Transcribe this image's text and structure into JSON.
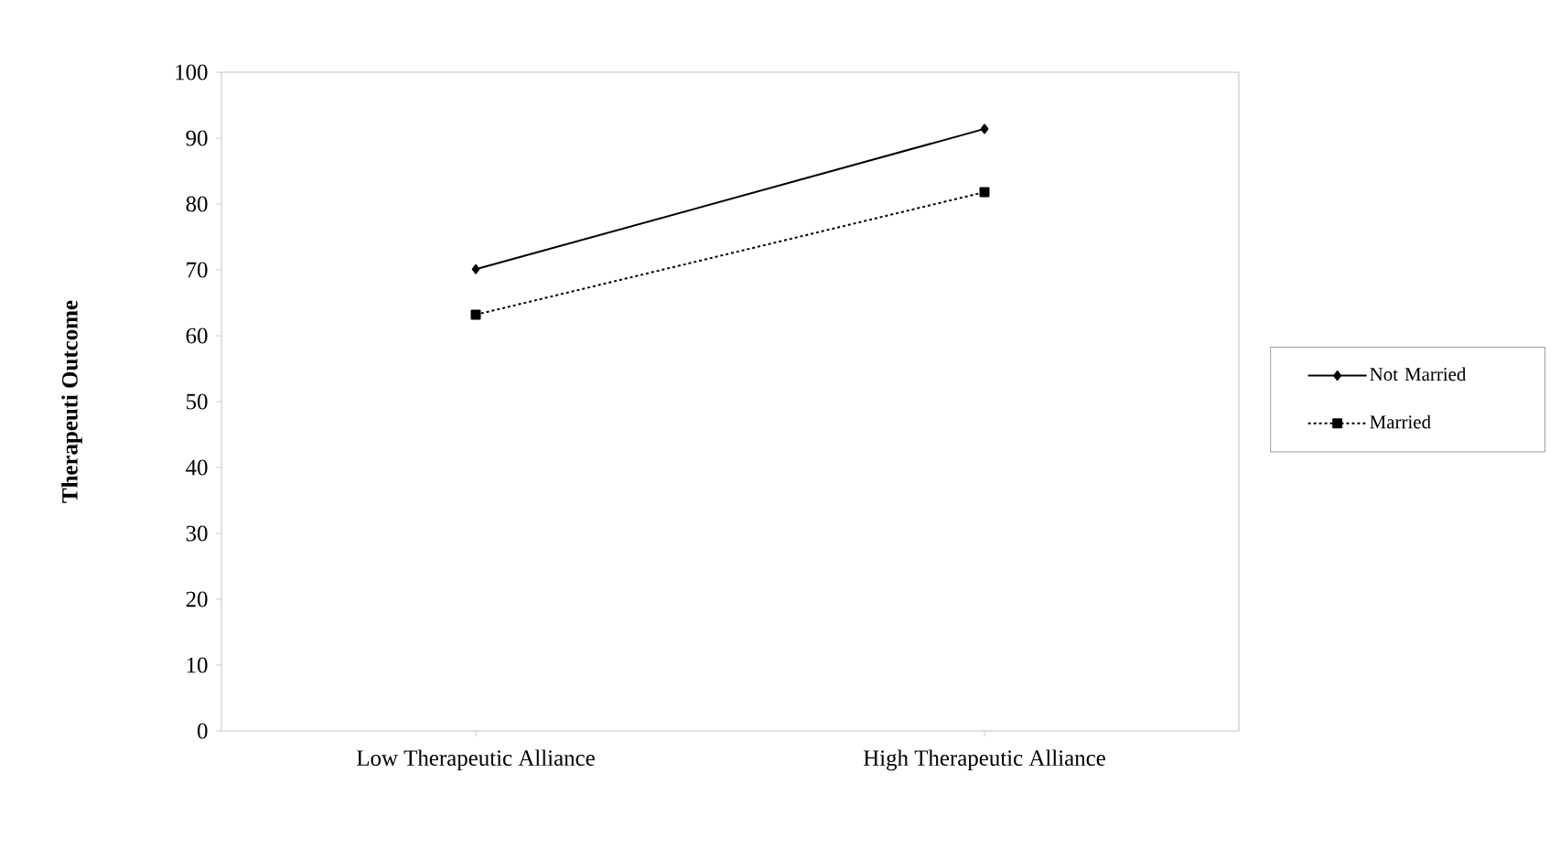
{
  "chart_data": {
    "type": "line",
    "ylabel": "Therapeuti Outcome",
    "categories": [
      "Low Therapeutic Alliance",
      "High Therapeutic Alliance"
    ],
    "series": [
      {
        "name": "Not Married",
        "color": "#000000",
        "values": [
          70.1,
          91.4
        ],
        "marker": "diamond",
        "line_style": "solid"
      },
      {
        "name": "Married",
        "color": "#000000",
        "values": [
          63.2,
          81.8
        ],
        "marker": "square",
        "line_style": "dashed"
      }
    ],
    "ylim": [
      0,
      100
    ],
    "yticks": [
      0,
      10,
      20,
      30,
      40,
      50,
      60,
      70,
      80,
      90,
      100
    ],
    "legend": "right",
    "grid": false
  }
}
